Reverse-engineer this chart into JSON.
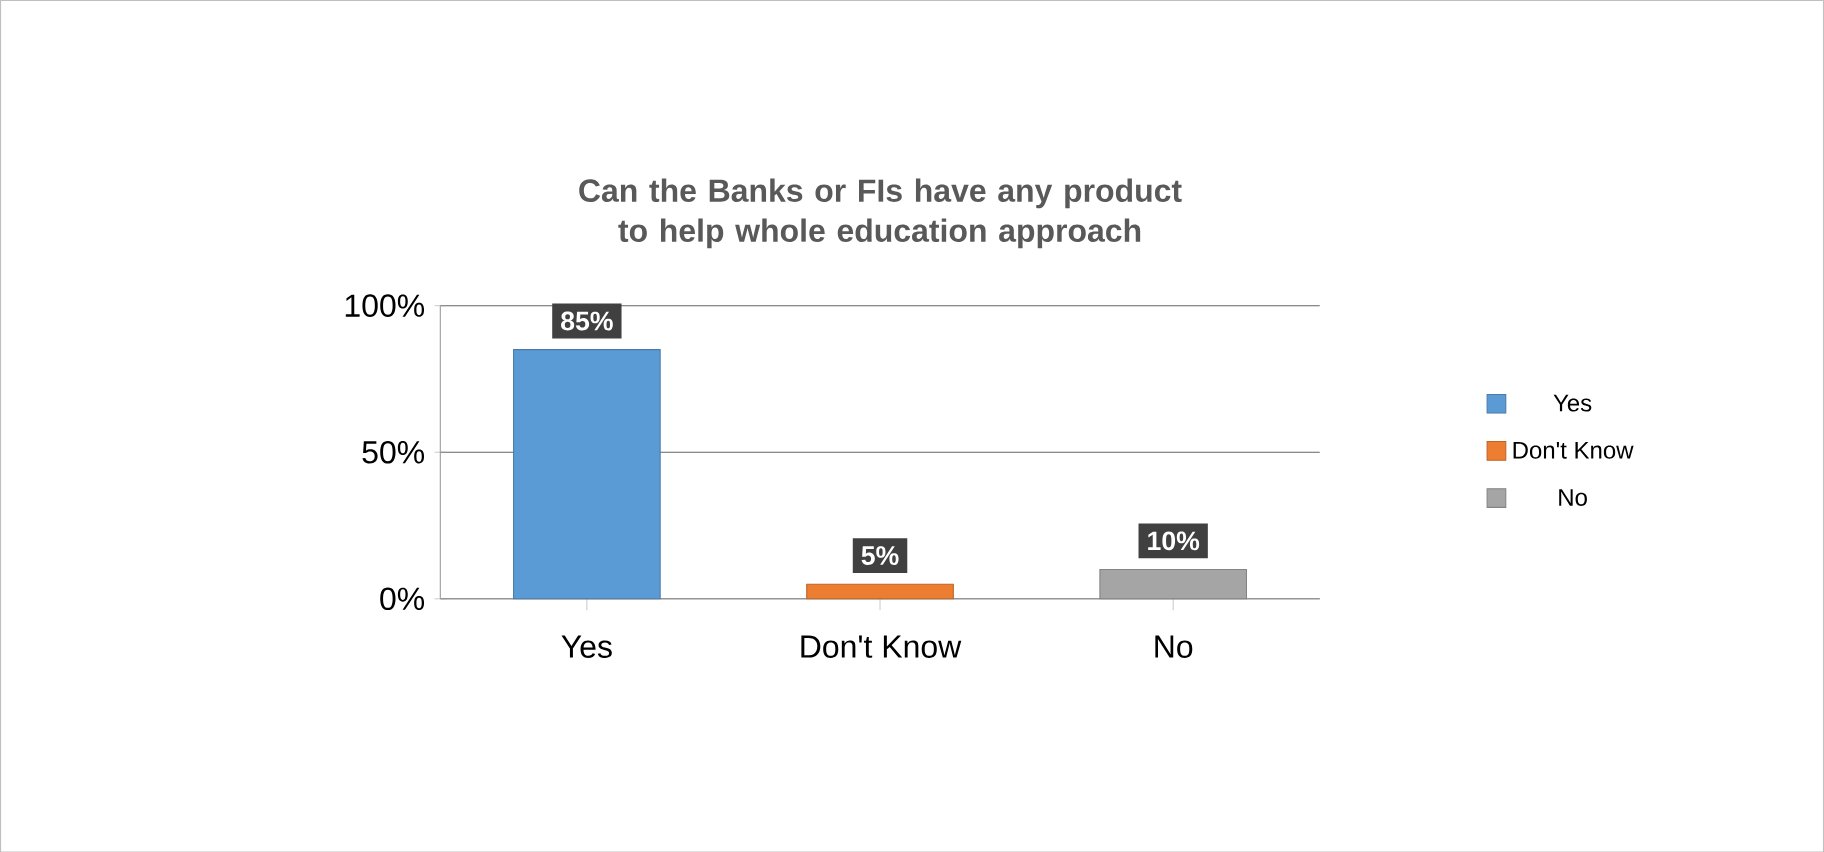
{
  "chart_data": {
    "type": "bar",
    "title": "Can the Banks or FIs have any product to help whole education approach",
    "categories": [
      "Yes",
      "Don't Know",
      "No"
    ],
    "series": [
      {
        "name": "Yes",
        "color": "#5b9bd5",
        "values": [
          85,
          null,
          null
        ],
        "value_labels": [
          "85%",
          null,
          null
        ]
      },
      {
        "name": "Don't Know",
        "color": "#ed7d31",
        "values": [
          null,
          5,
          null
        ],
        "value_labels": [
          null,
          "5%",
          null
        ]
      },
      {
        "name": "No",
        "color": "#a5a5a5",
        "values": [
          null,
          null,
          10
        ],
        "value_labels": [
          null,
          null,
          "10%"
        ]
      }
    ],
    "ylim": [
      0,
      100
    ],
    "yticks": [
      {
        "value": 0,
        "label": "0%"
      },
      {
        "value": 50,
        "label": "50%"
      },
      {
        "value": 100,
        "label": "100%"
      }
    ],
    "grid": "y",
    "legend": "right"
  }
}
